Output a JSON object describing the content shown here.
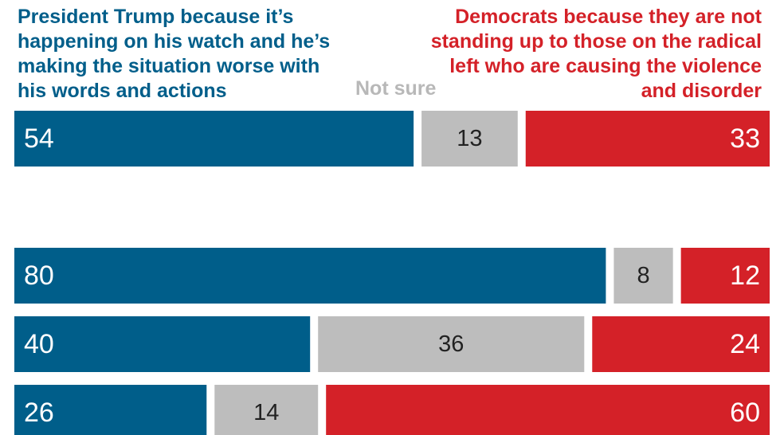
{
  "legend": {
    "trump": "President Trump because it’s happening on his watch and he’s making the situation worse with his words and actions",
    "not_sure": "Not sure",
    "democrats": "Democrats because they are not standing up to those on the radical left who are causing the violence and disorder"
  },
  "colors": {
    "trump": "#005e8a",
    "not_sure": "#bdbdbd",
    "democrats": "#d42128",
    "label_light": "#ffffff",
    "label_dark": "#222222"
  },
  "chart_data": {
    "type": "bar",
    "orientation": "horizontal-stacked-100",
    "series": [
      {
        "name": "President Trump because it’s happening on his watch and he’s making the situation worse with his words and actions",
        "values": [
          54,
          80,
          40,
          26
        ]
      },
      {
        "name": "Not sure",
        "values": [
          13,
          8,
          36,
          14
        ]
      },
      {
        "name": "Democrats because they are not standing up to those on the radical left who are causing the violence and disorder",
        "values": [
          33,
          12,
          24,
          60
        ]
      }
    ]
  }
}
